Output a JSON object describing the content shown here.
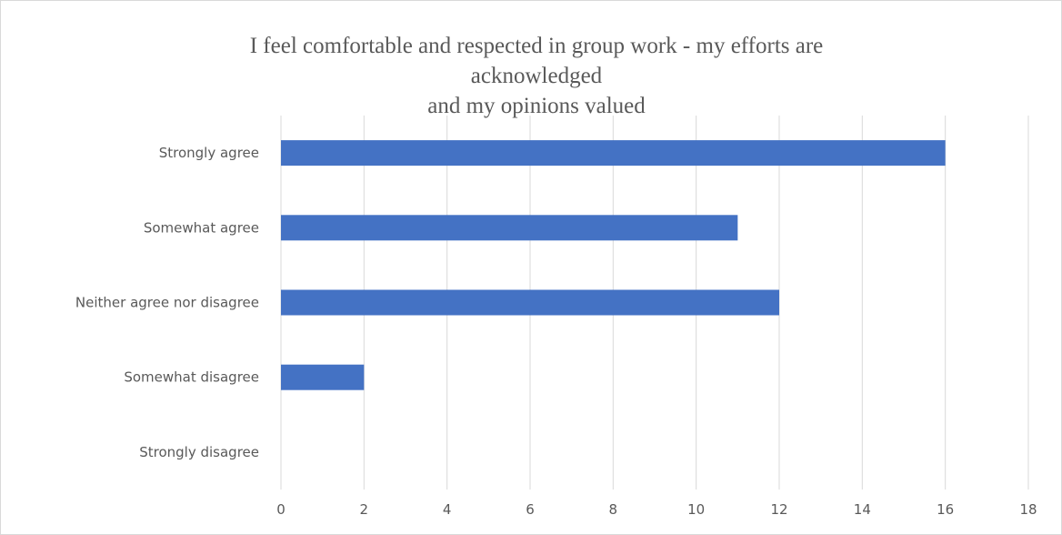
{
  "chart_data": {
    "type": "bar",
    "orientation": "horizontal",
    "title": "I feel comfortable and respected in group work - my efforts are acknowledged\nand my opinions valued",
    "categories": [
      "Strongly agree",
      "Somewhat agree",
      "Neither agree nor disagree",
      "Somewhat disagree",
      "Strongly disagree"
    ],
    "values": [
      16,
      11,
      12,
      2,
      0
    ],
    "xlim": [
      0,
      18
    ],
    "xticks": [
      0,
      2,
      4,
      6,
      8,
      10,
      12,
      14,
      16,
      18
    ],
    "grid": "vertical",
    "bar_color": "#4472c4",
    "grid_color": "#d9d9d9"
  }
}
